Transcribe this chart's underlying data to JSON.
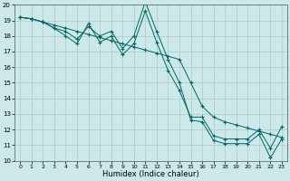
{
  "xlabel": "Humidex (Indice chaleur)",
  "xlim": [
    -0.5,
    23.5
  ],
  "ylim": [
    10,
    20
  ],
  "xticks": [
    0,
    1,
    2,
    3,
    4,
    5,
    6,
    7,
    8,
    9,
    10,
    11,
    12,
    13,
    14,
    15,
    16,
    17,
    18,
    19,
    20,
    21,
    22,
    23
  ],
  "yticks": [
    10,
    11,
    12,
    13,
    14,
    15,
    16,
    17,
    18,
    19,
    20
  ],
  "bg_color": "#cce8e8",
  "grid_color": "#aacccc",
  "line_color": "#006666",
  "series": [
    {
      "x": [
        0,
        1,
        2,
        3,
        4,
        5,
        6,
        7,
        8,
        9,
        10,
        11,
        12,
        13,
        14,
        15,
        16,
        17,
        18,
        19,
        20,
        21,
        22,
        23
      ],
      "y": [
        19.2,
        19.1,
        18.9,
        18.7,
        18.5,
        18.3,
        18.1,
        17.9,
        17.7,
        17.5,
        17.3,
        17.1,
        16.9,
        16.7,
        16.5,
        15.0,
        13.5,
        12.8,
        12.5,
        12.3,
        12.1,
        11.9,
        11.7,
        11.5
      ]
    },
    {
      "x": [
        0,
        1,
        2,
        3,
        4,
        5,
        6,
        7,
        8,
        9,
        10,
        11,
        12,
        13,
        14,
        15,
        16,
        17,
        18,
        19,
        20,
        21,
        22,
        23
      ],
      "y": [
        19.2,
        19.1,
        18.9,
        18.5,
        18.3,
        17.8,
        18.6,
        18.0,
        18.3,
        17.2,
        18.0,
        20.2,
        18.3,
        16.5,
        15.0,
        12.6,
        12.5,
        11.3,
        11.1,
        11.1,
        11.1,
        11.7,
        10.2,
        11.4
      ]
    },
    {
      "x": [
        0,
        1,
        2,
        3,
        4,
        5,
        6,
        7,
        8,
        9,
        10,
        11,
        12,
        13,
        14,
        15,
        16,
        17,
        18,
        19,
        20,
        21,
        22,
        23
      ],
      "y": [
        19.2,
        19.1,
        18.9,
        18.5,
        18.0,
        17.5,
        18.8,
        17.6,
        18.0,
        16.8,
        17.5,
        19.6,
        17.6,
        15.8,
        14.5,
        12.8,
        12.8,
        11.6,
        11.4,
        11.4,
        11.4,
        12.0,
        10.8,
        12.2
      ]
    }
  ]
}
